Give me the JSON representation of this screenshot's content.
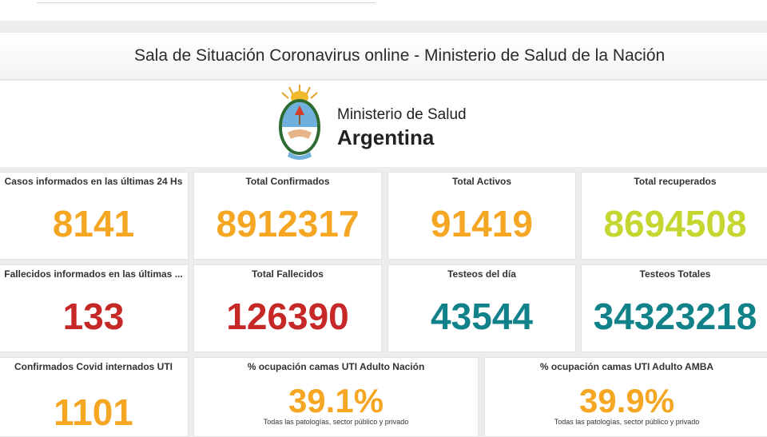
{
  "banner": {
    "title": "Sala de Situación Coronavirus online - Ministerio de Salud de la Nación"
  },
  "logo": {
    "line1": "Ministerio de Salud",
    "line2": "Argentina"
  },
  "colors": {
    "orange": "#f5a623",
    "red": "#c62828",
    "teal": "#11828a",
    "lime": "#c5d631"
  },
  "cards": [
    {
      "title": "Casos informados en las últimas 24 Hs",
      "value": "8141",
      "color": "orange"
    },
    {
      "title": "Total Confirmados",
      "value": "8912317",
      "color": "orange"
    },
    {
      "title": "Total Activos",
      "value": "91419",
      "color": "orange"
    },
    {
      "title": "Total recuperados",
      "value": "8694508",
      "color": "lime"
    },
    {
      "title": "Fallecidos informados en las últimas ...",
      "value": "133",
      "color": "red"
    },
    {
      "title": "Total Fallecidos",
      "value": "126390",
      "color": "red"
    },
    {
      "title": "Testeos del día",
      "value": "43544",
      "color": "teal"
    },
    {
      "title": "Testeos Totales",
      "value": "34323218",
      "color": "teal"
    },
    {
      "title": "Confirmados Covid internados UTI",
      "value": "1101",
      "color": "orange"
    },
    {
      "title": "% ocupación camas UTI Adulto Nación",
      "value": "39.1%",
      "subtitle": "Todas las patologías, sector público y privado",
      "color": "orange"
    },
    {
      "title": "% ocupación camas UTI Adulto AMBA",
      "value": "39.9%",
      "subtitle": "Todas las patologías, sector público y privado",
      "color": "orange"
    }
  ]
}
